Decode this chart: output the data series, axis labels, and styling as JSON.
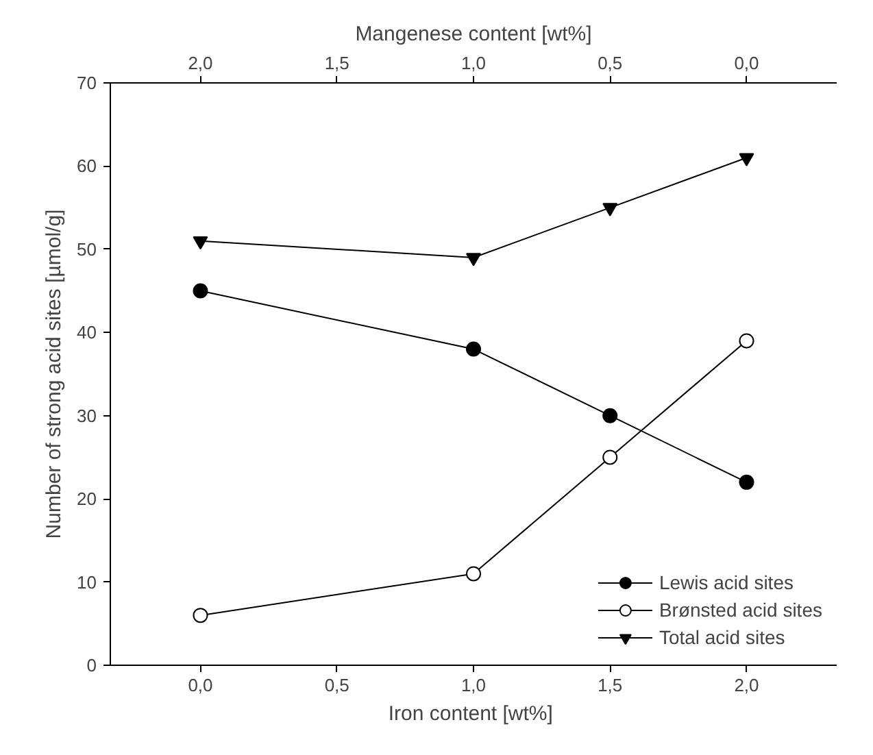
{
  "chart_data": {
    "type": "line",
    "xlabel": "Iron content  [wt%]",
    "x2label": "Mangenese content [wt%]",
    "ylabel": "Number of strong acid sites [µmol/g]",
    "x": [
      0,
      1,
      1.5,
      2
    ],
    "xlim": [
      -0.33,
      2.33
    ],
    "xticks": [
      {
        "value": 0,
        "label": "0,0"
      },
      {
        "value": 0.5,
        "label": "0,5"
      },
      {
        "value": 1,
        "label": "1,0"
      },
      {
        "value": 1.5,
        "label": "1,5"
      },
      {
        "value": 2,
        "label": "2,0"
      }
    ],
    "x2lim": [
      2.33,
      -0.33
    ],
    "x2ticks": [
      {
        "value": 2,
        "label": "2,0"
      },
      {
        "value": 1.5,
        "label": "1,5"
      },
      {
        "value": 1,
        "label": "1,0"
      },
      {
        "value": 0.5,
        "label": "0,5"
      },
      {
        "value": 0,
        "label": "0,0"
      }
    ],
    "ylim": [
      0,
      70
    ],
    "yticks": [
      0,
      10,
      20,
      30,
      40,
      50,
      60,
      70
    ],
    "grid": false,
    "legend": "bottom right",
    "series": [
      {
        "name": "Lewis acid sites",
        "color": "#000000",
        "marker": "circle",
        "values": [
          45,
          38,
          30,
          22
        ]
      },
      {
        "name": "Brønsted acid sites",
        "color": "#000000",
        "marker": "circle",
        "colors": [
          "#ffffff",
          "#ffffff",
          "#ffffff",
          "#ffffff"
        ],
        "values": [
          6,
          11,
          25,
          39
        ]
      },
      {
        "name": "Total acid sites",
        "color": "#000000",
        "marker": "triangle",
        "values": [
          51,
          49,
          55,
          61
        ]
      }
    ]
  }
}
